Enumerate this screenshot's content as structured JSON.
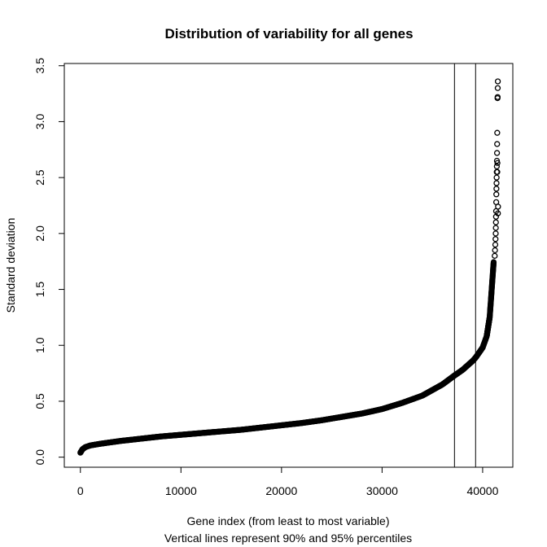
{
  "chart_data": {
    "type": "scatter",
    "title": "Distribution of variability for all genes",
    "xlabel": "Gene index (from least to most variable)",
    "subtitle": "Vertical lines represent 90% and 95% percentiles",
    "ylabel": "Standard deviation",
    "xlim": [
      -1600,
      43000
    ],
    "ylim": [
      -0.09,
      3.52
    ],
    "x_ticks": [
      0,
      10000,
      20000,
      30000,
      40000
    ],
    "y_ticks": [
      0.0,
      0.5,
      1.0,
      1.5,
      2.0,
      2.5,
      3.0,
      3.5
    ],
    "x_tick_labels": [
      "0",
      "10000",
      "20000",
      "30000",
      "40000"
    ],
    "y_tick_labels": [
      "0.0",
      "0.5",
      "1.0",
      "1.5",
      "2.0",
      "2.5",
      "3.0",
      "3.5"
    ],
    "grid": false,
    "legend": "none",
    "marker": "open-circle",
    "color": "#000000",
    "vertical_lines": [
      {
        "percentile": "90%",
        "x": 37200
      },
      {
        "percentile": "95%",
        "x": 39300
      }
    ],
    "curve": {
      "description": "sorted standard deviations",
      "x": [
        0,
        200,
        500,
        1000,
        2000,
        4000,
        6000,
        8000,
        10000,
        12000,
        14000,
        16000,
        18000,
        20000,
        22000,
        24000,
        26000,
        28000,
        30000,
        32000,
        34000,
        36000,
        37200,
        38000,
        39000,
        39300,
        40000,
        40400,
        40700,
        40900,
        41100
      ],
      "y": [
        0.04,
        0.07,
        0.09,
        0.105,
        0.12,
        0.145,
        0.165,
        0.185,
        0.2,
        0.215,
        0.23,
        0.245,
        0.265,
        0.285,
        0.305,
        0.33,
        0.36,
        0.39,
        0.43,
        0.485,
        0.55,
        0.65,
        0.73,
        0.78,
        0.86,
        0.89,
        0.98,
        1.08,
        1.25,
        1.5,
        1.75
      ]
    },
    "outliers": {
      "x": [
        41200,
        41230,
        41260,
        41280,
        41300,
        41310,
        41320,
        41330,
        41340,
        41350,
        41360,
        41370,
        41380,
        41390,
        41400,
        41410,
        41420,
        41430,
        41440,
        41450,
        41460,
        41470,
        41480,
        41490,
        41500,
        41510,
        41520,
        41530
      ],
      "y": [
        1.8,
        1.85,
        1.9,
        1.95,
        2.0,
        2.05,
        2.1,
        2.15,
        2.2,
        2.28,
        2.35,
        2.4,
        2.45,
        2.5,
        2.55,
        2.6,
        2.65,
        2.72,
        2.8,
        2.9,
        2.55,
        2.63,
        3.21,
        3.22,
        3.3,
        3.36,
        2.18,
        2.24
      ]
    }
  }
}
